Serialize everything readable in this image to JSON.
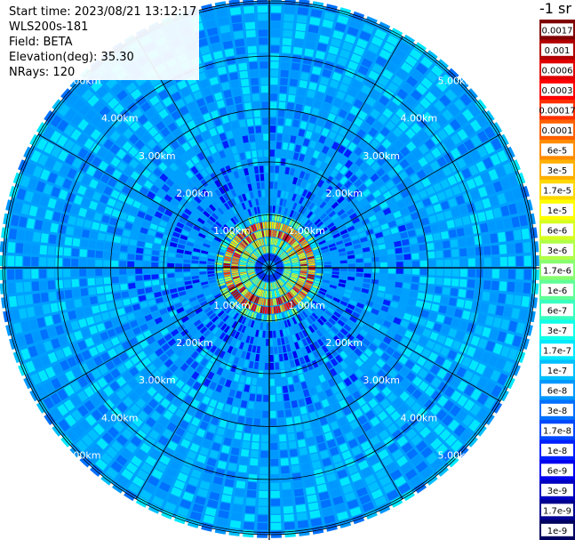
{
  "header": {
    "start_time": "Start time: 2023/08/21 13:12:17",
    "instrument": "WLS200s-181",
    "field": "Field: BETA",
    "elevation": "Elevation(deg): 35.30",
    "nrays": "NRays: 120"
  },
  "scale_title": "-1 sr",
  "range_rings": [
    {
      "label": "1.00km",
      "km": 1
    },
    {
      "label": "2.00km",
      "km": 2
    },
    {
      "label": "3.00km",
      "km": 3
    },
    {
      "label": "4.00km",
      "km": 4
    },
    {
      "label": "5.00km",
      "km": 5
    }
  ],
  "n_rays": 120,
  "colorbar": {
    "bands": [
      {
        "label": "0.0017",
        "color": "#800000"
      },
      {
        "label": "0.001",
        "color": "#b00000"
      },
      {
        "label": "0.0006",
        "color": "#e00000"
      },
      {
        "label": "0.0003",
        "color": "#ff0000"
      },
      {
        "label": "0.00017",
        "color": "#ff3000"
      },
      {
        "label": "0.0001",
        "color": "#ff6000"
      },
      {
        "label": "6e-5",
        "color": "#ff8c00"
      },
      {
        "label": "3e-5",
        "color": "#ffb000"
      },
      {
        "label": "1.7e-5",
        "color": "#ffd800"
      },
      {
        "label": "1e-5",
        "color": "#ffff00"
      },
      {
        "label": "6e-6",
        "color": "#d8ff20"
      },
      {
        "label": "3e-6",
        "color": "#b0ff48"
      },
      {
        "label": "1.7e-6",
        "color": "#88ff70"
      },
      {
        "label": "1e-6",
        "color": "#60ff98"
      },
      {
        "label": "6e-7",
        "color": "#38ffc0"
      },
      {
        "label": "3e-7",
        "color": "#10ffe8"
      },
      {
        "label": "1.7e-7",
        "color": "#00e8ff"
      },
      {
        "label": "1e-7",
        "color": "#00c0ff"
      },
      {
        "label": "6e-8",
        "color": "#0098ff"
      },
      {
        "label": "3e-8",
        "color": "#0070ff"
      },
      {
        "label": "1.7e-8",
        "color": "#0048ff"
      },
      {
        "label": "1e-8",
        "color": "#0020ff"
      },
      {
        "label": "6e-9",
        "color": "#0000f0"
      },
      {
        "label": "3e-9",
        "color": "#0000c0"
      },
      {
        "label": "1.7e-9",
        "color": "#000090"
      },
      {
        "label": "1e-9",
        "color": "#000060"
      }
    ]
  }
}
